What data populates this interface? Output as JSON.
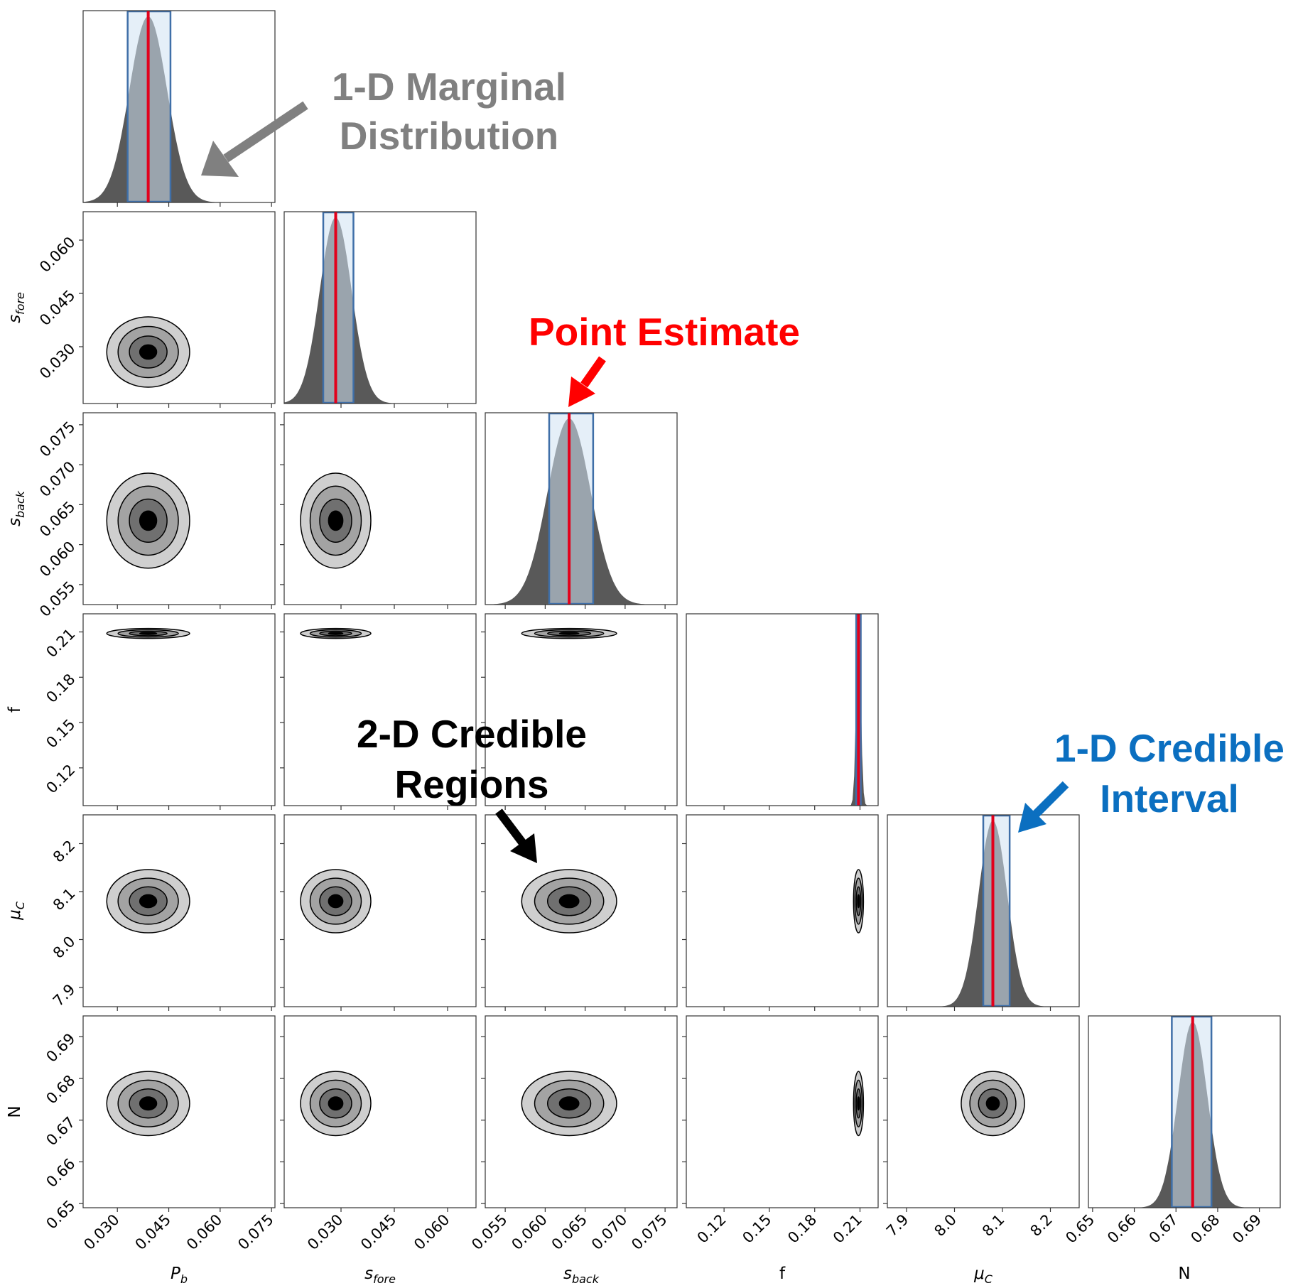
{
  "chart_data": {
    "type": "corner",
    "parameters": [
      {
        "label": "P",
        "sub": "b",
        "range": [
          0.02,
          0.076
        ],
        "ticks": [
          "0.030",
          "0.045",
          "0.060",
          "0.075"
        ],
        "tick_values": [
          0.03,
          0.045,
          0.06,
          0.075
        ],
        "point_estimate": 0.039,
        "interval": [
          0.033,
          0.0455
        ],
        "sd": 0.0055
      },
      {
        "label": "s",
        "sub": "fore",
        "range": [
          0.014,
          0.068
        ],
        "ticks": [
          "0.030",
          "0.045",
          "0.060"
        ],
        "tick_values": [
          0.03,
          0.045,
          0.06
        ],
        "point_estimate": 0.0285,
        "interval": [
          0.025,
          0.0335
        ],
        "sd": 0.0045
      },
      {
        "label": "s",
        "sub": "back",
        "range": [
          0.0525,
          0.0765
        ],
        "ticks": [
          "0.055",
          "0.060",
          "0.065",
          "0.070",
          "0.075"
        ],
        "tick_values": [
          0.055,
          0.06,
          0.065,
          0.07,
          0.075
        ],
        "point_estimate": 0.063,
        "interval": [
          0.0605,
          0.066
        ],
        "sd": 0.0027
      },
      {
        "label": "f",
        "sub": "",
        "range": [
          0.095,
          0.222
        ],
        "ticks": [
          "0.12",
          "0.15",
          "0.18",
          "0.21"
        ],
        "tick_values": [
          0.12,
          0.15,
          0.18,
          0.21
        ],
        "point_estimate": 0.209,
        "interval": [
          0.2075,
          0.2105
        ],
        "sd": 0.0015
      },
      {
        "label": "μ",
        "sub": "C",
        "range": [
          7.86,
          8.26
        ],
        "ticks": [
          "7.9",
          "8.0",
          "8.1",
          "8.2"
        ],
        "tick_values": [
          7.9,
          8.0,
          8.1,
          8.2
        ],
        "point_estimate": 8.08,
        "interval": [
          8.06,
          8.115
        ],
        "sd": 0.03
      },
      {
        "label": "N",
        "sub": "",
        "range": [
          0.649,
          0.695
        ],
        "ticks": [
          "0.65",
          "0.66",
          "0.67",
          "0.68",
          "0.69"
        ],
        "tick_values": [
          0.65,
          0.66,
          0.67,
          0.68,
          0.69
        ],
        "point_estimate": 0.674,
        "interval": [
          0.669,
          0.6785
        ],
        "sd": 0.0035
      }
    ],
    "interval_color": "#cfe2f3",
    "interval_edge": "#3f6fa8",
    "estimate_color": "#e3001b",
    "histogram_color": "#595959"
  },
  "annotations": {
    "marginal_l1": "1-D Marginal",
    "marginal_l2": "Distribution",
    "point": "Point Estimate",
    "regions_l1": "2-D Credible",
    "regions_l2": "Regions",
    "interval_l1": "1-D Credible",
    "interval_l2": "Interval",
    "gray": "#808080",
    "red": "#ff0000",
    "black": "#000000",
    "blue": "#0b6fc0"
  }
}
